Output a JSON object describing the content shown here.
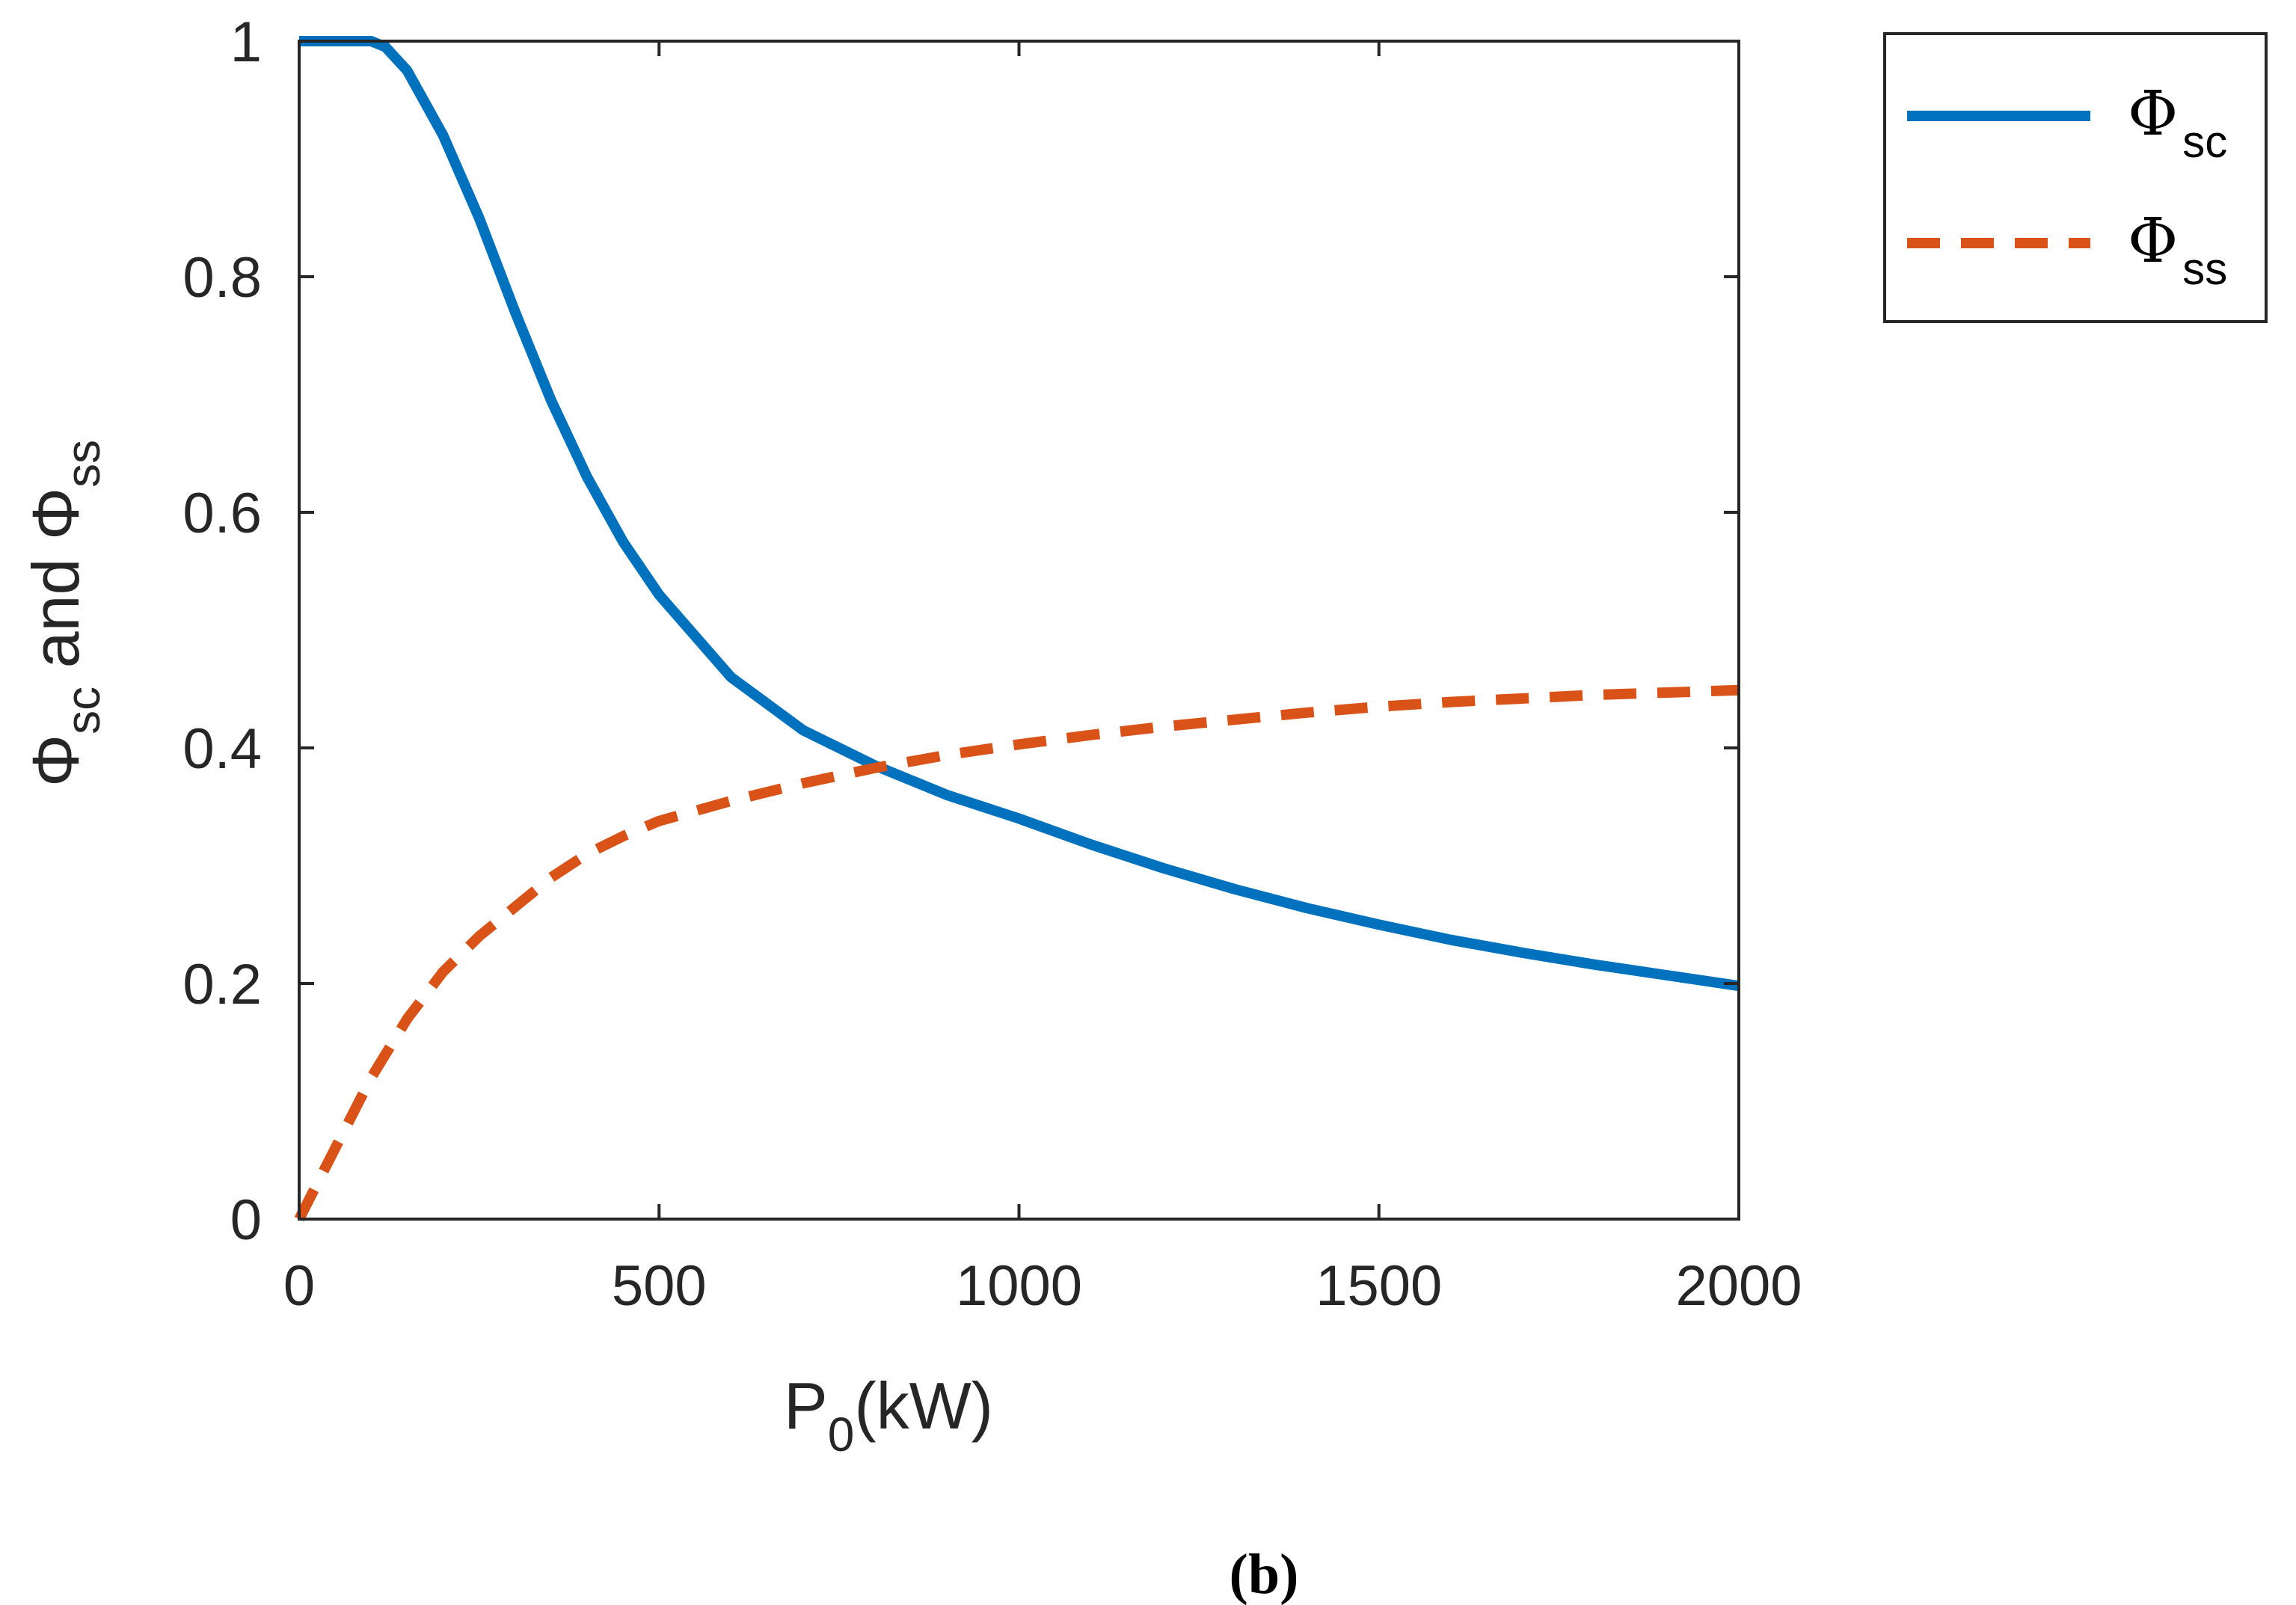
{
  "chart_data": {
    "type": "line",
    "title": "",
    "caption": "(b)",
    "xlabel": {
      "main": "P",
      "sub": "0",
      "unit": "(kW)"
    },
    "ylabel": {
      "phi1": "Φ",
      "sub1": "sc",
      "mid": " and ",
      "phi2": "Φ",
      "sub2": "ss"
    },
    "xlim": [
      0,
      2000
    ],
    "ylim": [
      0,
      1
    ],
    "xticks": [
      0,
      500,
      1000,
      1500,
      2000
    ],
    "xtick_labels": [
      "0",
      "500",
      "1000",
      "1500",
      "2000"
    ],
    "yticks": [
      0,
      0.2,
      0.4,
      0.6,
      0.8,
      1
    ],
    "ytick_labels": [
      "0",
      "0.2",
      "0.4",
      "0.6",
      "0.8",
      "1"
    ],
    "grid": false,
    "legend_position": "outside-top-right",
    "series": [
      {
        "name": "Φsc",
        "symbol": "Φ",
        "subscript": "sc",
        "color": "#0072BD",
        "style": "solid",
        "x": [
          0,
          50,
          100,
          120,
          150,
          200,
          250,
          300,
          350,
          400,
          450,
          500,
          600,
          700,
          800,
          900,
          1000,
          1100,
          1200,
          1300,
          1400,
          1500,
          1600,
          1700,
          1800,
          1900,
          2000
        ],
        "y": [
          1.0,
          1.0,
          1.0,
          0.995,
          0.975,
          0.92,
          0.85,
          0.77,
          0.695,
          0.63,
          0.575,
          0.53,
          0.46,
          0.415,
          0.385,
          0.36,
          0.34,
          0.318,
          0.298,
          0.28,
          0.264,
          0.25,
          0.237,
          0.226,
          0.216,
          0.207,
          0.198
        ]
      },
      {
        "name": "Φss",
        "symbol": "Φ",
        "subscript": "ss",
        "color": "#D95319",
        "style": "dashed",
        "x": [
          0,
          50,
          100,
          150,
          200,
          250,
          300,
          350,
          400,
          450,
          500,
          600,
          700,
          800,
          900,
          1000,
          1100,
          1200,
          1300,
          1400,
          1500,
          1600,
          1700,
          1800,
          1900,
          2000
        ],
        "y": [
          0.0,
          0.06,
          0.12,
          0.17,
          0.21,
          0.24,
          0.265,
          0.29,
          0.31,
          0.325,
          0.338,
          0.355,
          0.37,
          0.383,
          0.394,
          0.403,
          0.411,
          0.418,
          0.424,
          0.43,
          0.435,
          0.439,
          0.442,
          0.445,
          0.447,
          0.449
        ]
      }
    ]
  }
}
